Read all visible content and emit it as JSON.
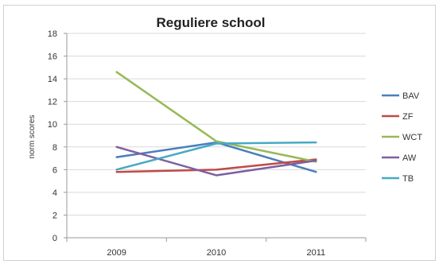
{
  "chart_data": {
    "type": "line",
    "title": "Reguliere school",
    "xlabel": "",
    "ylabel": "norm scores",
    "categories": [
      "2009",
      "2010",
      "2011"
    ],
    "ylim": [
      0,
      18
    ],
    "yticks": [
      0,
      2,
      4,
      6,
      8,
      10,
      12,
      14,
      16,
      18
    ],
    "grid": true,
    "legend_position": "right",
    "series": [
      {
        "name": "BAV",
        "color": "#4a7ebb",
        "values": [
          7.1,
          8.4,
          5.8
        ]
      },
      {
        "name": "ZF",
        "color": "#be4b48",
        "values": [
          5.8,
          6.0,
          6.9
        ]
      },
      {
        "name": "WCT",
        "color": "#98b954",
        "values": [
          14.6,
          8.5,
          6.7
        ]
      },
      {
        "name": "AW",
        "color": "#7d60a0",
        "values": [
          8.0,
          5.5,
          6.8
        ]
      },
      {
        "name": "TB",
        "color": "#46aac5",
        "values": [
          6.0,
          8.3,
          8.4
        ]
      }
    ]
  }
}
